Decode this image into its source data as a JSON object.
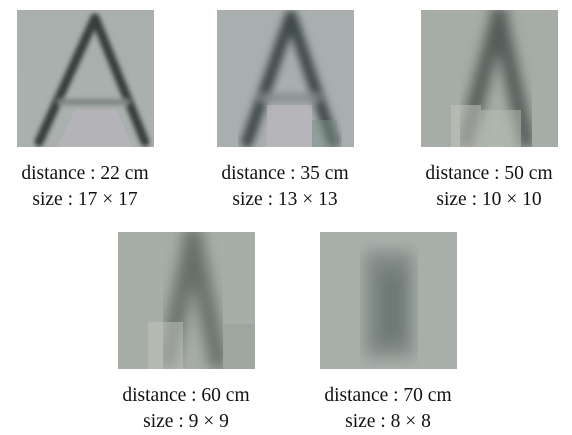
{
  "panels": [
    {
      "distance_label": "distance : 22 cm",
      "size_label": "size : 17 × 17",
      "pixel_grid": 17
    },
    {
      "distance_label": "distance : 35 cm",
      "size_label": "size : 13 × 13",
      "pixel_grid": 13
    },
    {
      "distance_label": "distance : 50 cm",
      "size_label": "size : 10 × 10",
      "pixel_grid": 10
    },
    {
      "distance_label": "distance : 60 cm",
      "size_label": "size : 9 × 9",
      "pixel_grid": 9
    },
    {
      "distance_label": "distance : 70 cm",
      "size_label": "size : 8 × 8",
      "pixel_grid": 8
    }
  ],
  "colors": {
    "background_gray": "#aab1ad",
    "stroke_dark": "#3a4240"
  }
}
